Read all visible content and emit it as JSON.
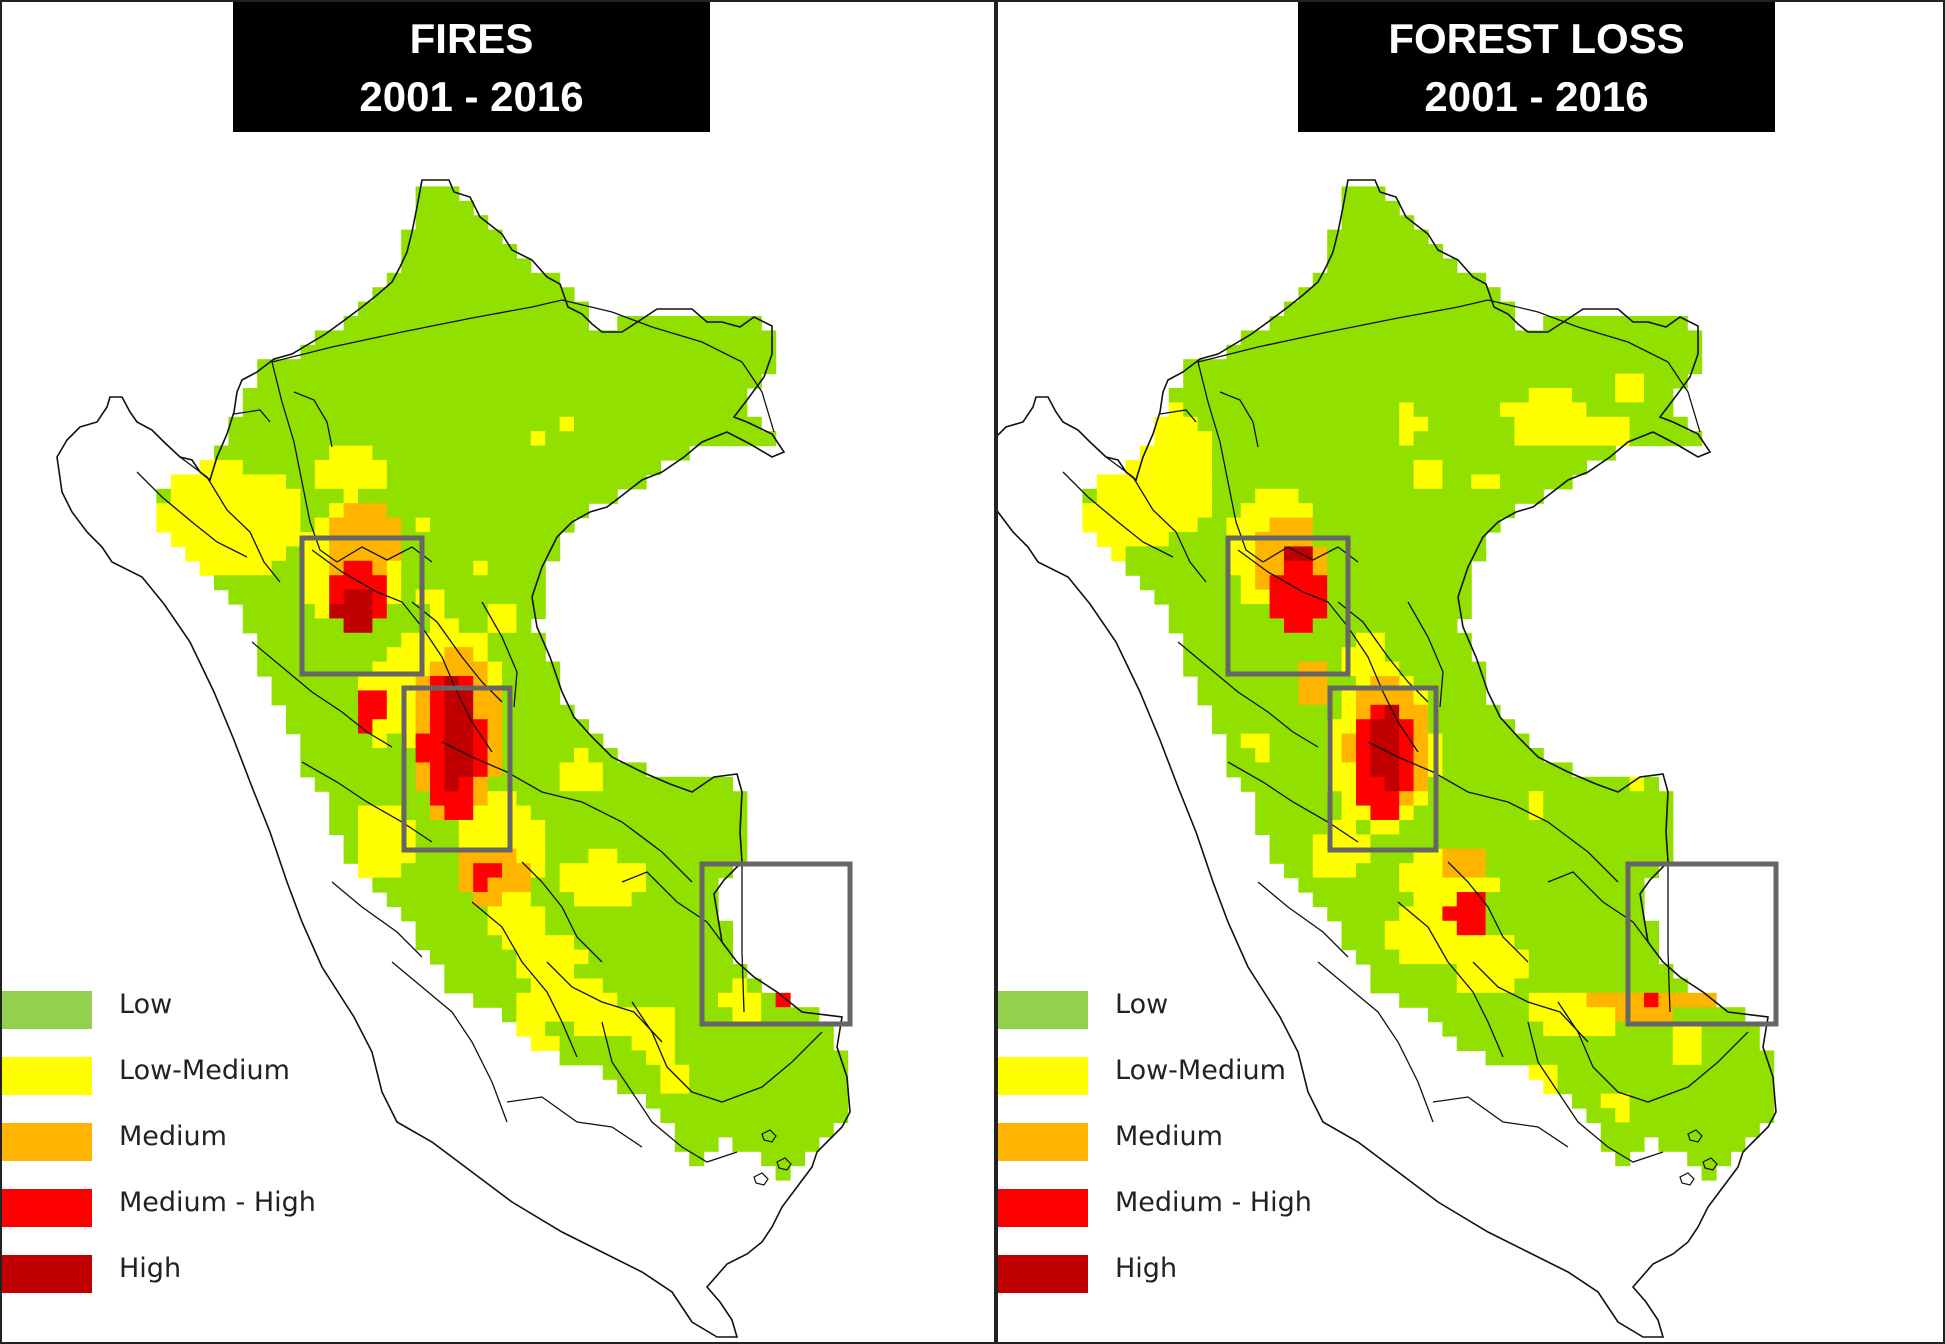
{
  "colors": {
    "low": "#92e000",
    "low_medium": "#ffff00",
    "medium": "#ffb400",
    "medium_high": "#ff0000",
    "high": "#c00000",
    "legend_low": "#92d050",
    "box": "#666666"
  },
  "panels": [
    {
      "title_line1": "FIRES",
      "title_line2": "2001 - 2016",
      "legend": [
        {
          "label": "Low",
          "color": "#92d050"
        },
        {
          "label": "Low-Medium",
          "color": "#ffff00"
        },
        {
          "label": "Medium",
          "color": "#ffb400"
        },
        {
          "label": "Medium - High",
          "color": "#ff0000"
        },
        {
          "label": "High",
          "color": "#c00000"
        }
      ]
    },
    {
      "title_line1": "FOREST LOSS",
      "title_line2": "2001 - 2016",
      "legend": [
        {
          "label": "Low",
          "color": "#92d050"
        },
        {
          "label": "Low-Medium",
          "color": "#ffff00"
        },
        {
          "label": "Medium",
          "color": "#ffb400"
        },
        {
          "label": "Medium - High",
          "color": "#ff0000"
        },
        {
          "label": "High",
          "color": "#c00000"
        }
      ]
    }
  ]
}
